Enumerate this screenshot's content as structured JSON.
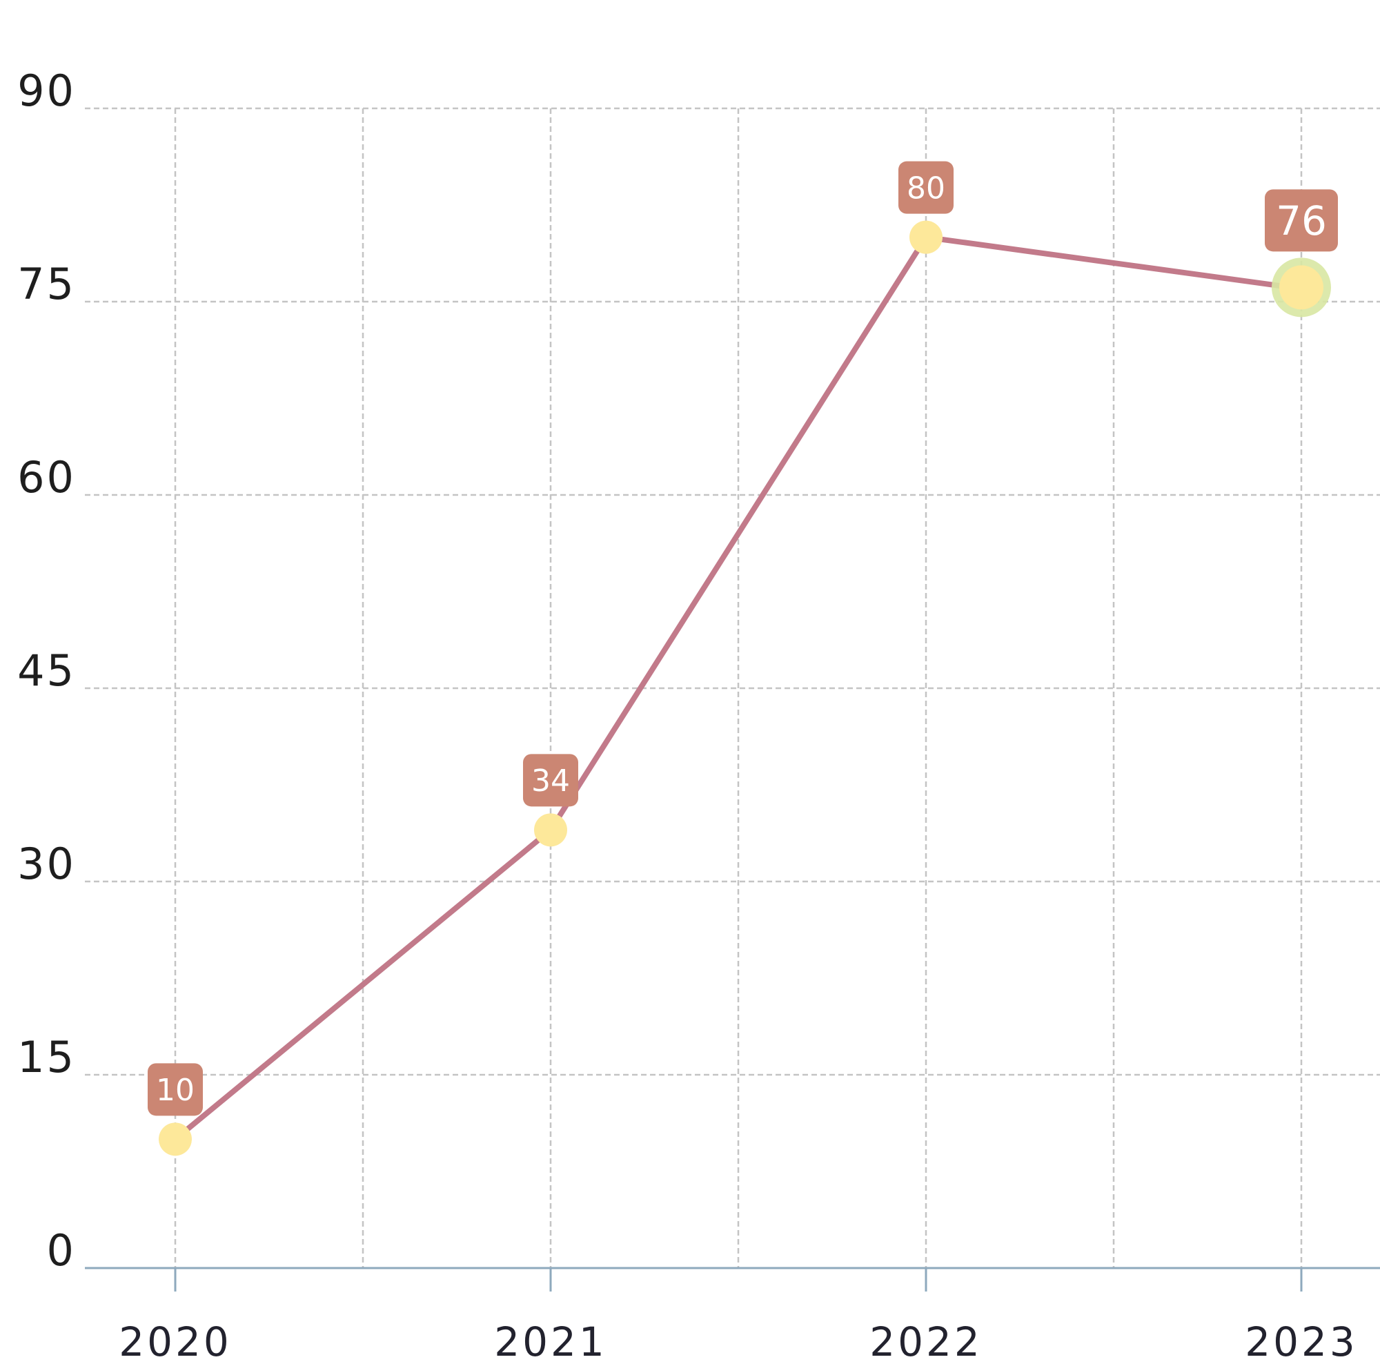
{
  "chart_data": {
    "type": "line",
    "title": "",
    "xlabel": "",
    "ylabel": "",
    "x": [
      "2020",
      "2021",
      "2022",
      "2023"
    ],
    "y_ticks": [
      "0",
      "15",
      "30",
      "45",
      "60",
      "75",
      "90"
    ],
    "ylim": [
      0,
      90
    ],
    "grid": true,
    "series": [
      {
        "values": [
          10,
          34,
          80,
          76
        ],
        "data_labels": [
          "10",
          "34",
          "80",
          "76"
        ],
        "highlighted_point": 3
      }
    ],
    "colors": {
      "line": "#c27a8a",
      "point": "#fde89a",
      "point_halo": "#d8e7a3",
      "label_bg": "#cb8673",
      "label_text": "#ffffff",
      "grid": "#c4c4c4",
      "axis": "#8ea9bd"
    }
  }
}
